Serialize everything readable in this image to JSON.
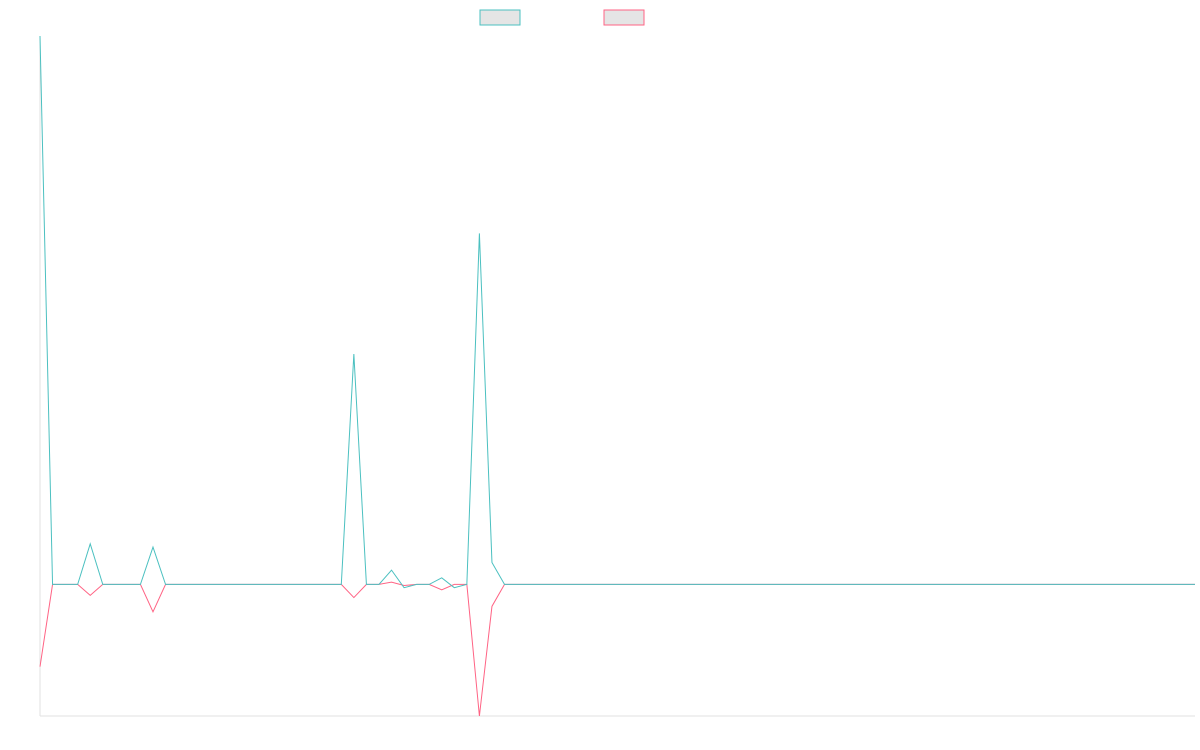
{
  "chart_data": {
    "type": "line",
    "title": "",
    "xlabel": "",
    "ylabel": "",
    "legend_position": "top-center",
    "grid": false,
    "x_count": 93,
    "ylim": [
      -1.2,
      5.0
    ],
    "series": [
      {
        "color": "#4bc0c0",
        "fill": "#e5e5e5",
        "points": [
          [
            0,
            5.0
          ],
          [
            1,
            0.0
          ],
          [
            2,
            0.0
          ],
          [
            3,
            0.0
          ],
          [
            4,
            0.37
          ],
          [
            5,
            0.0
          ],
          [
            8,
            0.0
          ],
          [
            9,
            0.34
          ],
          [
            10,
            0.0
          ],
          [
            24,
            0.0
          ],
          [
            25,
            2.1
          ],
          [
            26,
            0.0
          ],
          [
            27,
            0.0
          ],
          [
            28,
            0.13
          ],
          [
            29,
            -0.03
          ],
          [
            30,
            0.0
          ],
          [
            31,
            0.0
          ],
          [
            32,
            0.06
          ],
          [
            33,
            -0.03
          ],
          [
            34,
            0.0
          ],
          [
            35,
            3.2
          ],
          [
            36,
            0.2
          ],
          [
            37,
            0.0
          ],
          [
            92,
            0.0
          ]
        ]
      },
      {
        "color": "#ff6384",
        "fill": "#e5e5e5",
        "points": [
          [
            0,
            -0.75
          ],
          [
            1,
            0.0
          ],
          [
            2,
            0.0
          ],
          [
            3,
            0.0
          ],
          [
            4,
            -0.1
          ],
          [
            5,
            0.0
          ],
          [
            8,
            0.0
          ],
          [
            9,
            -0.25
          ],
          [
            10,
            0.0
          ],
          [
            24,
            0.0
          ],
          [
            25,
            -0.12
          ],
          [
            26,
            0.0
          ],
          [
            27,
            0.0
          ],
          [
            28,
            0.02
          ],
          [
            29,
            -0.01
          ],
          [
            30,
            0.0
          ],
          [
            31,
            0.0
          ],
          [
            32,
            -0.05
          ],
          [
            33,
            0.0
          ],
          [
            34,
            0.0
          ],
          [
            35,
            -1.2
          ],
          [
            36,
            -0.2
          ],
          [
            37,
            0.0
          ],
          [
            92,
            0.0
          ]
        ]
      }
    ]
  }
}
